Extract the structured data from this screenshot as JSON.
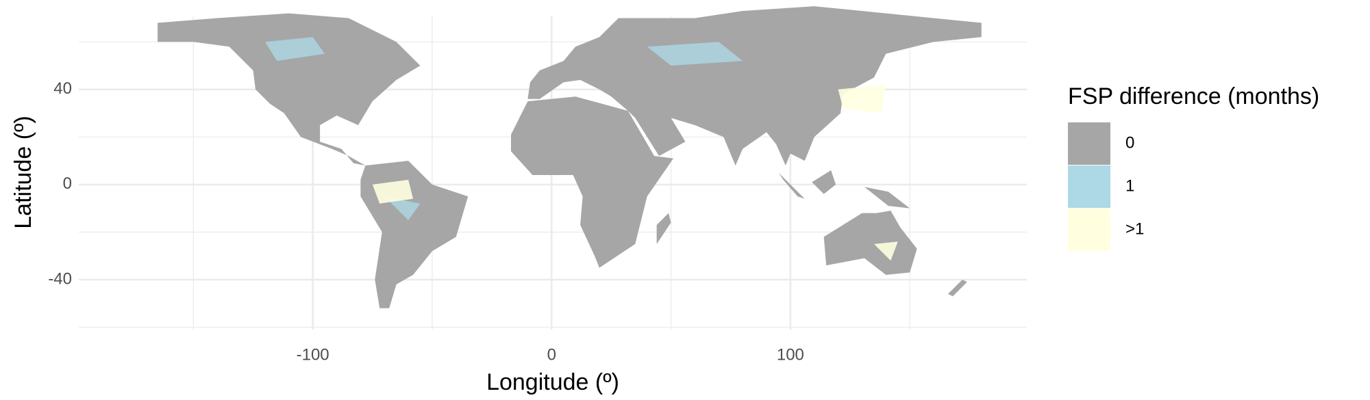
{
  "chart_data": {
    "type": "map",
    "x_label": "Longitude (º)",
    "y_label": "Latitude (º)",
    "xlim": [
      -198,
      199
    ],
    "ylim": [
      -61,
      71
    ],
    "xticks": [
      -100,
      0,
      100
    ],
    "yticks": [
      -40,
      0,
      40
    ],
    "x_minor_ticks": [
      -150,
      -50,
      50,
      150
    ],
    "y_minor_ticks": [
      -60,
      -20,
      20,
      60
    ],
    "grid": true,
    "legend": {
      "title": "FSP difference (months)",
      "position": "right",
      "categories": [
        "0",
        "1",
        ">1"
      ],
      "colors": [
        "#a6a6a6",
        "#add8e6",
        "#ffffe0"
      ]
    }
  }
}
